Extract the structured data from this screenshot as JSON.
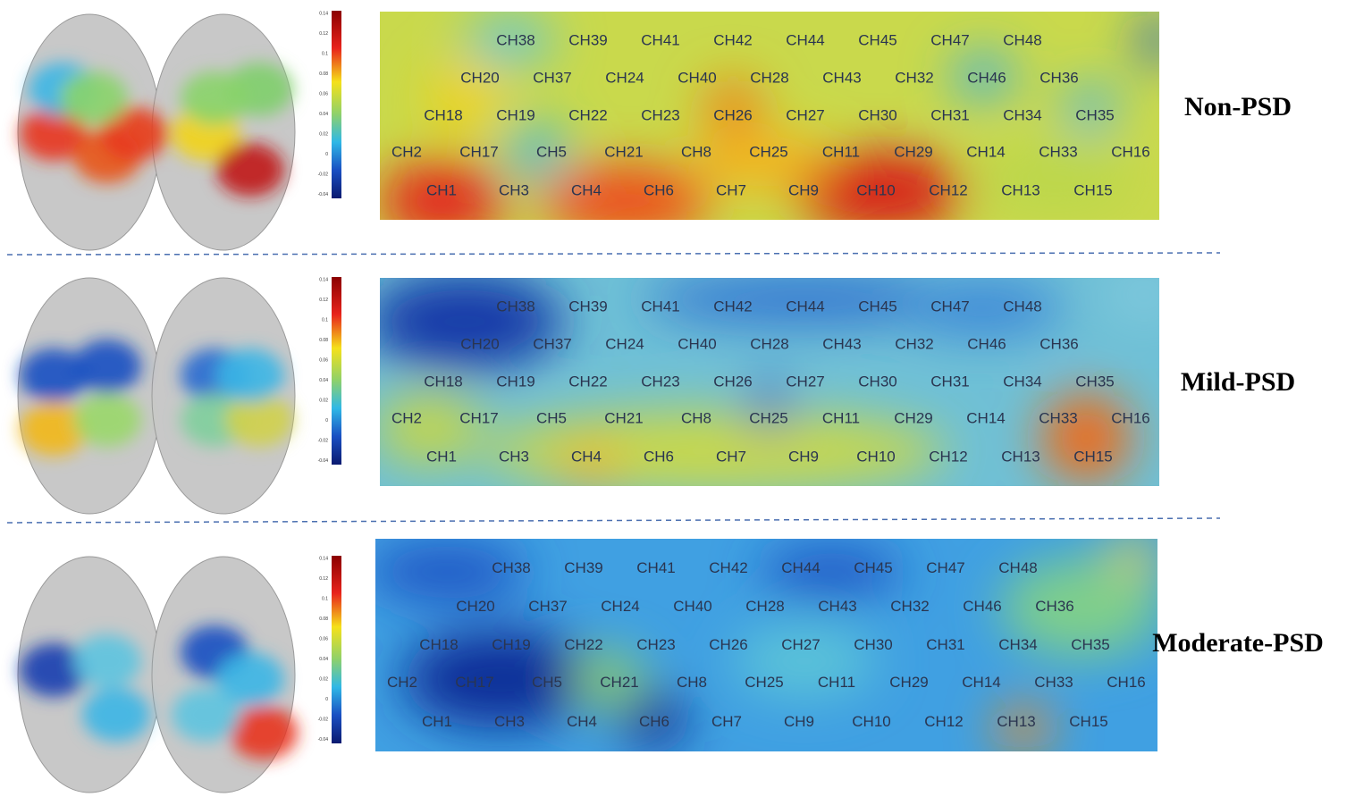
{
  "channels": [
    [
      "CH38",
      "CH39",
      "CH41",
      "CH42",
      "CH44",
      "CH45",
      "CH47",
      "CH48"
    ],
    [
      "CH20",
      "CH37",
      "CH24",
      "CH40",
      "CH28",
      "CH43",
      "CH32",
      "CH46",
      "CH36"
    ],
    [
      "CH18",
      "CH19",
      "CH22",
      "CH23",
      "CH26",
      "CH27",
      "CH30",
      "CH31",
      "CH34",
      "CH35"
    ],
    [
      "CH2",
      "CH17",
      "CH5",
      "CH21",
      "CH8",
      "CH25",
      "CH11",
      "CH29",
      "CH14",
      "CH33",
      "CH16"
    ],
    [
      "CH1",
      "CH3",
      "CH4",
      "CH6",
      "CH7",
      "CH9",
      "CH10",
      "CH12",
      "CH13",
      "CH15"
    ]
  ],
  "colorbar_ticks": [
    0.14,
    0.12,
    0.1,
    0.08,
    0.06,
    0.04,
    0.02,
    0,
    -0.02,
    -0.04
  ],
  "panels": [
    {
      "label": "Non-PSD"
    },
    {
      "label": "Mild-PSD"
    },
    {
      "label": "Moderate-PSD"
    }
  ]
}
